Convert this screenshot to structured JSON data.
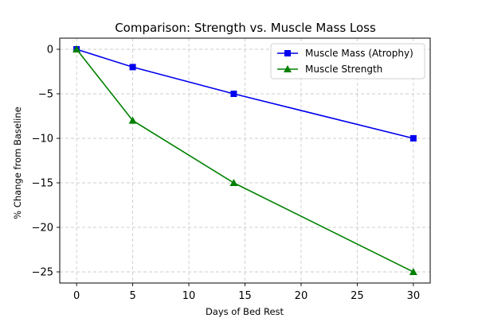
{
  "chart_data": {
    "type": "line",
    "title": "Comparison: Strength vs. Muscle Mass Loss",
    "xlabel": "Days of Bed Rest",
    "ylabel": "% Change from Baseline",
    "xlim": [
      -1.5,
      31.5
    ],
    "ylim": [
      -26.25,
      1.25
    ],
    "xticks": [
      0,
      5,
      10,
      15,
      20,
      25,
      30
    ],
    "yticks": [
      0,
      -5,
      -10,
      -15,
      -20,
      -25
    ],
    "xtick_labels": [
      "0",
      "5",
      "10",
      "15",
      "20",
      "25",
      "30"
    ],
    "ytick_labels": [
      "0",
      "−5",
      "−10",
      "−15",
      "−20",
      "−25"
    ],
    "grid": true,
    "legend_position": "top-right",
    "series": [
      {
        "name": "Muscle Mass (Atrophy)",
        "color": "#0000ee",
        "marker": "square",
        "x": [
          0,
          5,
          14,
          30
        ],
        "y": [
          0,
          -2,
          -5,
          -10
        ]
      },
      {
        "name": "Muscle Strength",
        "color": "#008000",
        "marker": "triangle",
        "x": [
          0,
          5,
          14,
          30
        ],
        "y": [
          0,
          -8,
          -15,
          -25
        ]
      }
    ]
  }
}
